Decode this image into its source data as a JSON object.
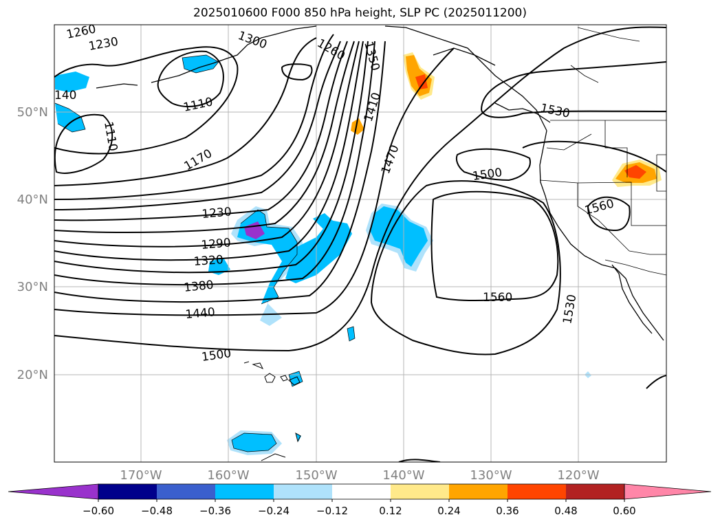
{
  "title": "2025010600 F000 850 hPa height, SLP PC (2025011200)",
  "latitude_labels": [
    "50°N",
    "40°N",
    "30°N",
    "20°N"
  ],
  "longitude_labels": [
    "170°W",
    "160°W",
    "150°W",
    "140°W",
    "130°W",
    "120°W"
  ],
  "contour_labels": [
    "1260",
    "1230",
    "1300",
    "140",
    "1110",
    "1110",
    "1260",
    "1350",
    "1410",
    "1470",
    "1530",
    "1170",
    "1500",
    "1230",
    "1290",
    "1320",
    "1380",
    "1440",
    "1500",
    "1560",
    "1560",
    "1530"
  ],
  "colorbar": {
    "ticks": [
      "−0.60",
      "−0.48",
      "−0.36",
      "−0.24",
      "−0.12",
      "0.12",
      "0.24",
      "0.36",
      "0.48",
      "0.60"
    ],
    "colors": [
      "#9932cc",
      "#00008b",
      "#3a5fcd",
      "#00bfff",
      "#afe2fb",
      "#ffffff",
      "#ffe98a",
      "#ffa500",
      "#ff4500",
      "#b22222",
      "#ff86a8"
    ]
  },
  "colors": {
    "grid": "#b4b4b4",
    "axis_label": "#808080",
    "contour": "#000000"
  }
}
